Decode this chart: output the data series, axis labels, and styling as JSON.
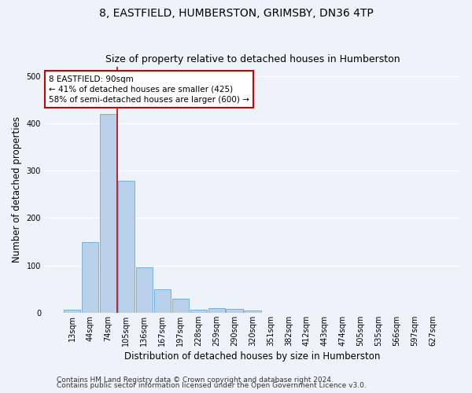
{
  "title": "8, EASTFIELD, HUMBERSTON, GRIMSBY, DN36 4TP",
  "subtitle": "Size of property relative to detached houses in Humberston",
  "xlabel": "Distribution of detached houses by size in Humberston",
  "ylabel": "Number of detached properties",
  "footer1": "Contains HM Land Registry data © Crown copyright and database right 2024.",
  "footer2": "Contains public sector information licensed under the Open Government Licence v3.0.",
  "categories": [
    "13sqm",
    "44sqm",
    "74sqm",
    "105sqm",
    "136sqm",
    "167sqm",
    "197sqm",
    "228sqm",
    "259sqm",
    "290sqm",
    "320sqm",
    "351sqm",
    "382sqm",
    "412sqm",
    "443sqm",
    "474sqm",
    "505sqm",
    "535sqm",
    "566sqm",
    "597sqm",
    "627sqm"
  ],
  "values": [
    6,
    150,
    420,
    278,
    96,
    50,
    30,
    7,
    10,
    8,
    5,
    0,
    0,
    0,
    0,
    0,
    0,
    0,
    0,
    0,
    0
  ],
  "bar_color": "#b8d0ea",
  "bar_edge_color": "#6aaad4",
  "vline_x": 2.5,
  "vline_color": "#cc0000",
  "annotation_text": "8 EASTFIELD: 90sqm\n← 41% of detached houses are smaller (425)\n58% of semi-detached houses are larger (600) →",
  "annotation_box_color": "#ffffff",
  "annotation_edge_color": "#cc0000",
  "ylim": [
    0,
    520
  ],
  "background_color": "#eef2f9",
  "grid_color": "#ffffff",
  "title_fontsize": 10,
  "subtitle_fontsize": 9,
  "axis_label_fontsize": 8.5,
  "tick_fontsize": 7,
  "footer_fontsize": 6.5,
  "annotation_fontsize": 7.5
}
